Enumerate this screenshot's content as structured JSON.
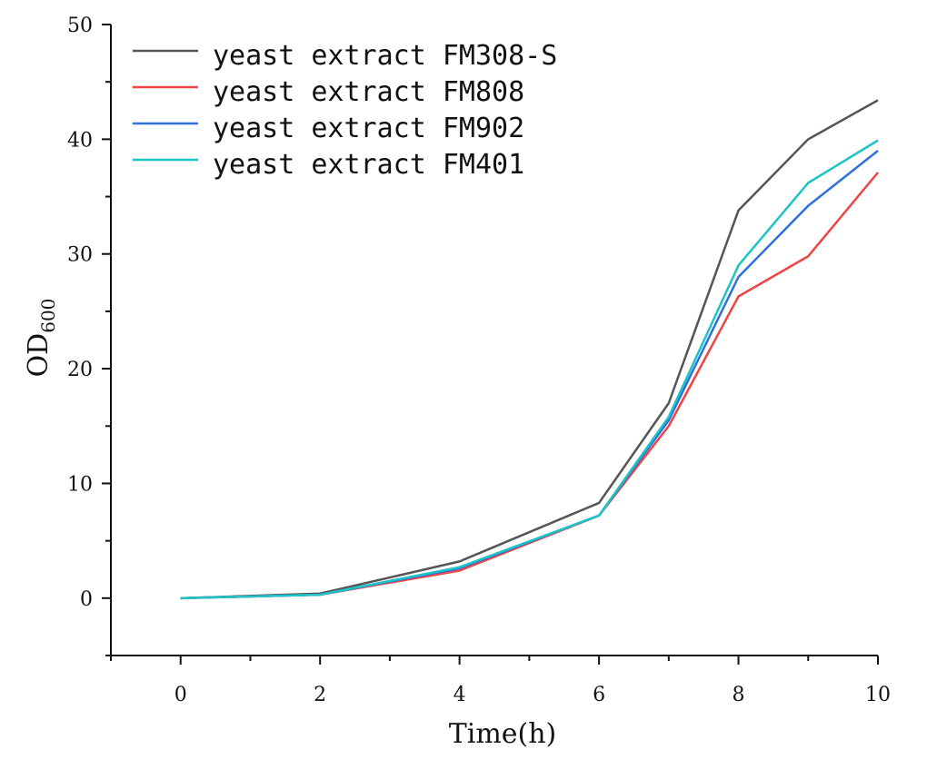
{
  "chart_data": {
    "type": "line",
    "title": "",
    "xlabel": "Time(h)",
    "ylabel": "OD",
    "ylabel_subscript": "600",
    "xlim": [
      -1,
      10
    ],
    "ylim": [
      -5,
      50
    ],
    "xticks": [
      0,
      2,
      4,
      6,
      8,
      10
    ],
    "yticks": [
      0,
      10,
      20,
      30,
      40,
      50
    ],
    "grid": false,
    "legend_position": "top-left",
    "x": [
      0,
      2,
      4,
      6,
      7,
      8,
      9,
      10
    ],
    "series": [
      {
        "name": "yeast extract FM308-S",
        "color": "#555555",
        "values": [
          0,
          0.4,
          3.2,
          8.3,
          17.0,
          33.8,
          40.0,
          43.4
        ]
      },
      {
        "name": "yeast extract FM808",
        "color": "#ef4444",
        "values": [
          0,
          0.3,
          2.4,
          7.2,
          15.0,
          26.3,
          29.8,
          37.1
        ]
      },
      {
        "name": "yeast extract FM902",
        "color": "#2f6fe0",
        "values": [
          0,
          0.3,
          2.6,
          7.2,
          15.5,
          28.0,
          34.2,
          39.0
        ]
      },
      {
        "name": "yeast extract FM401",
        "color": "#1ec4c4",
        "values": [
          0,
          0.3,
          2.7,
          7.2,
          15.8,
          29.0,
          36.2,
          39.9
        ]
      }
    ]
  }
}
